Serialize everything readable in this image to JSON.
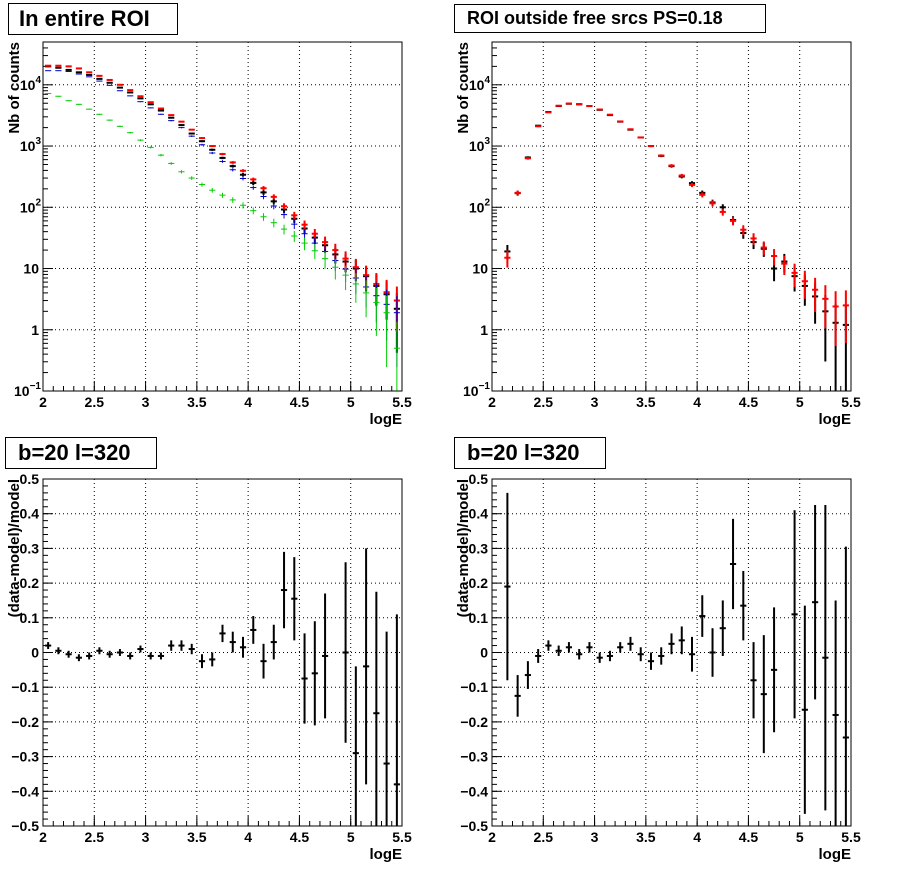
{
  "panels": {
    "top_left_title": "In entire ROI",
    "top_right_title": "ROI outside free srcs PS=0.18",
    "bottom_left_title": "b=20 l=320",
    "bottom_right_title": "b=20 l=320"
  },
  "colors": {
    "data": "#000000",
    "model": "#ff0000",
    "component_blue": "#0000cc",
    "component_green": "#00cc00"
  },
  "chart_data": [
    {
      "type": "scatter",
      "title": "In entire ROI",
      "xlabel": "logE",
      "ylabel": "Nb of counts",
      "xlim": [
        2,
        5.5
      ],
      "ylim": [
        0.1,
        50000
      ],
      "yscale": "log",
      "grid": true,
      "x": [
        2.05,
        2.15,
        2.25,
        2.35,
        2.45,
        2.55,
        2.65,
        2.75,
        2.85,
        2.95,
        3.05,
        3.15,
        3.25,
        3.35,
        3.45,
        3.55,
        3.65,
        3.75,
        3.85,
        3.95,
        4.05,
        4.15,
        4.25,
        4.35,
        4.45,
        4.55,
        4.65,
        4.75,
        4.85,
        4.95,
        5.05,
        5.15,
        5.25,
        5.35,
        5.45
      ],
      "series": [
        {
          "color": "#000000",
          "values": [
            20000,
            19000,
            17500,
            16000,
            14500,
            12500,
            10800,
            9000,
            7500,
            6000,
            4800,
            3800,
            2900,
            2200,
            1600,
            1200,
            870,
            640,
            470,
            340,
            250,
            175,
            125,
            92,
            65,
            45,
            32,
            24,
            17,
            13,
            10,
            7.5,
            5.2,
            3.8,
            2.2
          ]
        },
        {
          "color": "#ff0000",
          "values": [
            20500,
            20500,
            20000,
            18500,
            16000,
            14000,
            12000,
            10000,
            8200,
            6500,
            5200,
            4100,
            3200,
            2500,
            1850,
            1350,
            1000,
            740,
            540,
            395,
            285,
            205,
            148,
            104,
            74,
            52,
            37,
            27,
            20,
            14.5,
            10.5,
            7.8,
            5.6,
            4.1,
            3.0
          ]
        },
        {
          "color": "#0000cc",
          "values": [
            17000,
            17000,
            16500,
            15000,
            13500,
            11500,
            9800,
            8000,
            6600,
            5300,
            4200,
            3300,
            2600,
            2000,
            1450,
            1050,
            770,
            560,
            410,
            295,
            210,
            150,
            105,
            76,
            53,
            37,
            26,
            19,
            13.5,
            9.8,
            7.0,
            5.0,
            3.6,
            2.6,
            1.9
          ]
        },
        {
          "color": "#00cc00",
          "values": [
            7200,
            6500,
            5500,
            4800,
            4000,
            3300,
            2650,
            2100,
            1650,
            1250,
            950,
            710,
            520,
            380,
            300,
            235,
            190,
            158,
            132,
            108,
            88,
            70,
            56,
            44,
            34,
            26,
            19.5,
            14.5,
            10.5,
            7.8,
            5.6,
            4.0,
            2.8,
            1.9,
            0.5
          ]
        }
      ]
    },
    {
      "type": "scatter",
      "title": "ROI outside free srcs PS=0.18",
      "xlabel": "logE",
      "ylabel": "Nb of counts",
      "xlim": [
        2,
        5.5
      ],
      "ylim": [
        0.1,
        50000
      ],
      "yscale": "log",
      "grid": true,
      "x": [
        2.15,
        2.25,
        2.35,
        2.45,
        2.55,
        2.65,
        2.75,
        2.85,
        2.95,
        3.05,
        3.15,
        3.25,
        3.35,
        3.45,
        3.55,
        3.65,
        3.75,
        3.85,
        3.95,
        4.05,
        4.15,
        4.25,
        4.35,
        4.45,
        4.55,
        4.65,
        4.75,
        4.85,
        4.95,
        5.05,
        5.15,
        5.25,
        5.35,
        5.45
      ],
      "series": [
        {
          "color": "#000000",
          "values": [
            19,
            170,
            650,
            2150,
            3600,
            4500,
            4900,
            4800,
            4500,
            3900,
            3200,
            2500,
            1850,
            1380,
            1000,
            690,
            470,
            318,
            248,
            172,
            120,
            100,
            62,
            38,
            27,
            21,
            10,
            13,
            7.5,
            5.2,
            3.5,
            2.0,
            1.3,
            1.2
          ]
        },
        {
          "color": "#ff0000",
          "values": [
            15,
            172,
            630,
            2100,
            3550,
            4550,
            4950,
            4850,
            4500,
            3950,
            3250,
            2520,
            1880,
            1380,
            1000,
            700,
            480,
            330,
            232,
            160,
            116,
            84,
            60,
            43,
            31,
            22,
            16,
            12,
            8.5,
            6.2,
            4.5,
            3.2,
            2.4,
            2.5
          ]
        }
      ]
    },
    {
      "type": "scatter",
      "title": "b=20 l=320",
      "xlabel": "logE",
      "ylabel": "(data-model)/model",
      "xlim": [
        2,
        5.5
      ],
      "ylim": [
        -0.5,
        0.5
      ],
      "grid": true,
      "x": [
        2.05,
        2.15,
        2.25,
        2.35,
        2.45,
        2.55,
        2.65,
        2.75,
        2.85,
        2.95,
        3.05,
        3.15,
        3.25,
        3.35,
        3.45,
        3.55,
        3.65,
        3.75,
        3.85,
        3.95,
        4.05,
        4.15,
        4.25,
        4.35,
        4.45,
        4.55,
        4.65,
        4.75,
        4.95,
        5.05,
        5.15,
        5.25,
        5.35,
        5.45
      ],
      "series": [
        {
          "color": "#000000",
          "values": [
            0.02,
            0.005,
            -0.005,
            -0.015,
            -0.01,
            0.005,
            -0.005,
            0.0,
            -0.01,
            0.01,
            -0.01,
            -0.01,
            0.02,
            0.02,
            0.01,
            -0.025,
            -0.02,
            0.055,
            0.03,
            0.015,
            0.065,
            -0.025,
            0.03,
            0.18,
            0.155,
            -0.075,
            -0.06,
            -0.01,
            0.0,
            -0.29,
            -0.04,
            -0.175,
            -0.32,
            -0.38
          ],
          "errors": [
            0.01,
            0.01,
            0.01,
            0.01,
            0.01,
            0.01,
            0.01,
            0.01,
            0.01,
            0.01,
            0.01,
            0.01,
            0.015,
            0.015,
            0.015,
            0.02,
            0.02,
            0.025,
            0.03,
            0.03,
            0.04,
            0.05,
            0.05,
            0.11,
            0.12,
            0.13,
            0.15,
            0.18,
            0.26,
            0.25,
            0.34,
            0.35,
            0.38,
            0.49
          ]
        }
      ]
    },
    {
      "type": "scatter",
      "title": "b=20 l=320",
      "xlabel": "logE",
      "ylabel": "(data-model)/model",
      "xlim": [
        2,
        5.5
      ],
      "ylim": [
        -0.5,
        0.5
      ],
      "grid": true,
      "x": [
        2.15,
        2.25,
        2.35,
        2.45,
        2.55,
        2.65,
        2.75,
        2.85,
        2.95,
        3.05,
        3.15,
        3.25,
        3.35,
        3.45,
        3.55,
        3.65,
        3.75,
        3.85,
        3.95,
        4.05,
        4.15,
        4.25,
        4.35,
        4.45,
        4.55,
        4.65,
        4.75,
        4.95,
        5.05,
        5.15,
        5.25,
        5.35,
        5.45
      ],
      "series": [
        {
          "color": "#000000",
          "values": [
            0.19,
            -0.125,
            -0.065,
            -0.01,
            0.02,
            0.005,
            0.015,
            -0.005,
            0.015,
            -0.015,
            -0.01,
            0.015,
            0.025,
            -0.005,
            -0.025,
            -0.01,
            0.025,
            0.035,
            -0.005,
            0.105,
            0.0,
            0.07,
            0.255,
            0.135,
            -0.08,
            -0.12,
            -0.05,
            0.11,
            -0.165,
            0.145,
            -0.015,
            -0.18,
            -0.245
          ],
          "errors": [
            0.27,
            0.06,
            0.04,
            0.02,
            0.015,
            0.015,
            0.015,
            0.015,
            0.015,
            0.015,
            0.015,
            0.015,
            0.02,
            0.02,
            0.025,
            0.025,
            0.03,
            0.04,
            0.05,
            0.06,
            0.07,
            0.08,
            0.13,
            0.1,
            0.11,
            0.17,
            0.18,
            0.3,
            0.3,
            0.28,
            0.44,
            0.33,
            0.55
          ]
        }
      ]
    }
  ]
}
